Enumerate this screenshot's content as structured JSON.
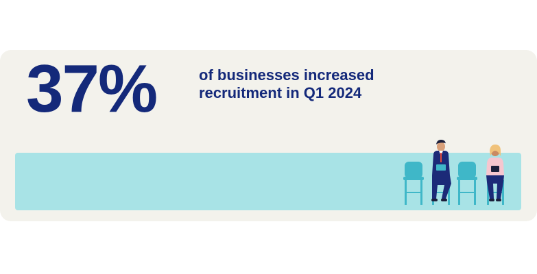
{
  "stat": {
    "value": "37%",
    "caption_line1": "of businesses increased",
    "caption_line2": "recruitment in Q1 2024"
  },
  "colors": {
    "navy": "#14297a",
    "card_bg": "#f3f2ec",
    "band": "#a8e3e6",
    "chair": "#3fb7c8"
  },
  "illustration": {
    "icon": "waiting-room-people-on-chairs-icon"
  }
}
